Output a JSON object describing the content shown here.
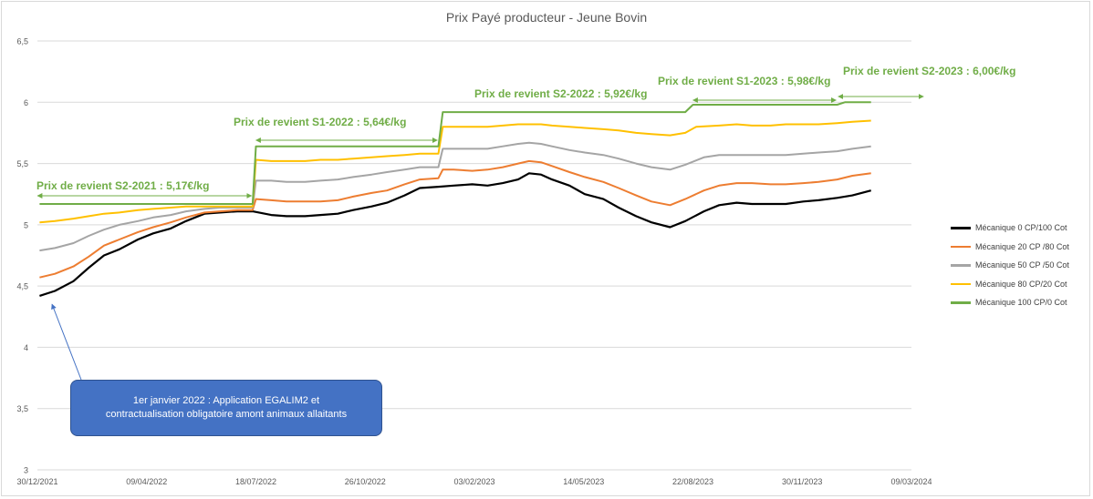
{
  "chart_data": {
    "type": "line",
    "title": "Prix Payé producteur - Jeune Bovin",
    "xlabel": "",
    "ylabel": "",
    "ylim": [
      3,
      6.5
    ],
    "y_ticks": [
      "3",
      "3,5",
      "4",
      "4,5",
      "5",
      "5,5",
      "6",
      "6,5"
    ],
    "x_range": [
      "2021-12-30",
      "2024-03-09"
    ],
    "x_ticks": [
      "30/12/2021",
      "09/04/2022",
      "18/07/2022",
      "26/10/2022",
      "03/02/2023",
      "14/05/2023",
      "22/08/2023",
      "30/11/2023",
      "09/03/2024"
    ],
    "grid": true,
    "legend_position": "right",
    "series": [
      {
        "name": "Mécanique 0 CP/100 Cot",
        "color": "#000000",
        "points": [
          [
            "2022-01-01",
            4.42
          ],
          [
            "2022-01-15",
            4.46
          ],
          [
            "2022-02-01",
            4.54
          ],
          [
            "2022-02-15",
            4.65
          ],
          [
            "2022-03-01",
            4.75
          ],
          [
            "2022-03-15",
            4.8
          ],
          [
            "2022-04-01",
            4.88
          ],
          [
            "2022-04-15",
            4.93
          ],
          [
            "2022-05-01",
            4.97
          ],
          [
            "2022-05-15",
            5.03
          ],
          [
            "2022-06-01",
            5.09
          ],
          [
            "2022-06-15",
            5.1
          ],
          [
            "2022-07-01",
            5.11
          ],
          [
            "2022-07-15",
            5.11
          ],
          [
            "2022-08-01",
            5.08
          ],
          [
            "2022-08-15",
            5.07
          ],
          [
            "2022-09-01",
            5.07
          ],
          [
            "2022-09-15",
            5.08
          ],
          [
            "2022-10-01",
            5.09
          ],
          [
            "2022-10-15",
            5.12
          ],
          [
            "2022-11-01",
            5.15
          ],
          [
            "2022-11-15",
            5.18
          ],
          [
            "2022-12-01",
            5.24
          ],
          [
            "2022-12-15",
            5.3
          ],
          [
            "2023-01-01",
            5.31
          ],
          [
            "2023-01-15",
            5.32
          ],
          [
            "2023-02-01",
            5.33
          ],
          [
            "2023-02-15",
            5.32
          ],
          [
            "2023-03-01",
            5.34
          ],
          [
            "2023-03-15",
            5.37
          ],
          [
            "2023-03-25",
            5.42
          ],
          [
            "2023-04-05",
            5.41
          ],
          [
            "2023-04-15",
            5.37
          ],
          [
            "2023-05-01",
            5.32
          ],
          [
            "2023-05-15",
            5.25
          ],
          [
            "2023-06-01",
            5.21
          ],
          [
            "2023-06-15",
            5.14
          ],
          [
            "2023-07-01",
            5.07
          ],
          [
            "2023-07-15",
            5.02
          ],
          [
            "2023-08-01",
            4.98
          ],
          [
            "2023-08-15",
            5.03
          ],
          [
            "2023-09-01",
            5.11
          ],
          [
            "2023-09-15",
            5.16
          ],
          [
            "2023-10-01",
            5.18
          ],
          [
            "2023-10-15",
            5.17
          ],
          [
            "2023-11-01",
            5.17
          ],
          [
            "2023-11-15",
            5.17
          ],
          [
            "2023-12-01",
            5.19
          ],
          [
            "2023-12-15",
            5.2
          ],
          [
            "2024-01-01",
            5.22
          ],
          [
            "2024-01-15",
            5.24
          ],
          [
            "2024-02-01",
            5.28
          ]
        ]
      },
      {
        "name": "Mécanique 20 CP /80 Cot",
        "color": "#ed7d31",
        "points": [
          [
            "2022-01-01",
            4.57
          ],
          [
            "2022-01-15",
            4.6
          ],
          [
            "2022-02-01",
            4.66
          ],
          [
            "2022-02-15",
            4.74
          ],
          [
            "2022-03-01",
            4.83
          ],
          [
            "2022-03-15",
            4.88
          ],
          [
            "2022-04-01",
            4.94
          ],
          [
            "2022-04-15",
            4.98
          ],
          [
            "2022-05-01",
            5.02
          ],
          [
            "2022-05-15",
            5.06
          ],
          [
            "2022-06-01",
            5.1
          ],
          [
            "2022-06-15",
            5.11
          ],
          [
            "2022-07-01",
            5.12
          ],
          [
            "2022-07-15",
            5.12
          ],
          [
            "2022-07-18",
            5.21
          ],
          [
            "2022-08-01",
            5.2
          ],
          [
            "2022-08-15",
            5.19
          ],
          [
            "2022-09-01",
            5.19
          ],
          [
            "2022-09-15",
            5.19
          ],
          [
            "2022-10-01",
            5.2
          ],
          [
            "2022-10-15",
            5.23
          ],
          [
            "2022-11-01",
            5.26
          ],
          [
            "2022-11-15",
            5.28
          ],
          [
            "2022-12-01",
            5.33
          ],
          [
            "2022-12-15",
            5.37
          ],
          [
            "2023-01-01",
            5.38
          ],
          [
            "2023-01-05",
            5.45
          ],
          [
            "2023-01-15",
            5.45
          ],
          [
            "2023-02-01",
            5.44
          ],
          [
            "2023-02-15",
            5.45
          ],
          [
            "2023-03-01",
            5.47
          ],
          [
            "2023-03-15",
            5.5
          ],
          [
            "2023-03-25",
            5.52
          ],
          [
            "2023-04-05",
            5.51
          ],
          [
            "2023-04-15",
            5.48
          ],
          [
            "2023-05-01",
            5.43
          ],
          [
            "2023-05-15",
            5.39
          ],
          [
            "2023-06-01",
            5.35
          ],
          [
            "2023-06-15",
            5.3
          ],
          [
            "2023-07-01",
            5.24
          ],
          [
            "2023-07-15",
            5.19
          ],
          [
            "2023-08-01",
            5.16
          ],
          [
            "2023-08-15",
            5.21
          ],
          [
            "2023-09-01",
            5.28
          ],
          [
            "2023-09-15",
            5.32
          ],
          [
            "2023-10-01",
            5.34
          ],
          [
            "2023-10-15",
            5.34
          ],
          [
            "2023-11-01",
            5.33
          ],
          [
            "2023-11-15",
            5.33
          ],
          [
            "2023-12-01",
            5.34
          ],
          [
            "2023-12-15",
            5.35
          ],
          [
            "2024-01-01",
            5.37
          ],
          [
            "2024-01-15",
            5.4
          ],
          [
            "2024-02-01",
            5.42
          ]
        ]
      },
      {
        "name": "Mécanique 50 CP /50 Cot",
        "color": "#a5a5a5",
        "points": [
          [
            "2022-01-01",
            4.79
          ],
          [
            "2022-01-15",
            4.81
          ],
          [
            "2022-02-01",
            4.85
          ],
          [
            "2022-02-15",
            4.91
          ],
          [
            "2022-03-01",
            4.96
          ],
          [
            "2022-03-15",
            5.0
          ],
          [
            "2022-04-01",
            5.03
          ],
          [
            "2022-04-15",
            5.06
          ],
          [
            "2022-05-01",
            5.08
          ],
          [
            "2022-05-15",
            5.11
          ],
          [
            "2022-06-01",
            5.13
          ],
          [
            "2022-06-15",
            5.14
          ],
          [
            "2022-07-01",
            5.14
          ],
          [
            "2022-07-15",
            5.14
          ],
          [
            "2022-07-18",
            5.36
          ],
          [
            "2022-08-01",
            5.36
          ],
          [
            "2022-08-15",
            5.35
          ],
          [
            "2022-09-01",
            5.35
          ],
          [
            "2022-09-15",
            5.36
          ],
          [
            "2022-10-01",
            5.37
          ],
          [
            "2022-10-15",
            5.39
          ],
          [
            "2022-11-01",
            5.41
          ],
          [
            "2022-11-15",
            5.43
          ],
          [
            "2022-12-01",
            5.45
          ],
          [
            "2022-12-15",
            5.47
          ],
          [
            "2023-01-01",
            5.47
          ],
          [
            "2023-01-05",
            5.62
          ],
          [
            "2023-01-15",
            5.62
          ],
          [
            "2023-02-01",
            5.62
          ],
          [
            "2023-02-15",
            5.62
          ],
          [
            "2023-03-01",
            5.64
          ],
          [
            "2023-03-15",
            5.66
          ],
          [
            "2023-03-25",
            5.67
          ],
          [
            "2023-04-05",
            5.66
          ],
          [
            "2023-04-15",
            5.64
          ],
          [
            "2023-05-01",
            5.61
          ],
          [
            "2023-05-15",
            5.59
          ],
          [
            "2023-06-01",
            5.57
          ],
          [
            "2023-06-15",
            5.54
          ],
          [
            "2023-07-01",
            5.5
          ],
          [
            "2023-07-15",
            5.47
          ],
          [
            "2023-08-01",
            5.45
          ],
          [
            "2023-08-15",
            5.49
          ],
          [
            "2023-09-01",
            5.55
          ],
          [
            "2023-09-15",
            5.57
          ],
          [
            "2023-10-01",
            5.57
          ],
          [
            "2023-10-15",
            5.57
          ],
          [
            "2023-11-01",
            5.57
          ],
          [
            "2023-11-15",
            5.57
          ],
          [
            "2023-12-01",
            5.58
          ],
          [
            "2023-12-15",
            5.59
          ],
          [
            "2024-01-01",
            5.6
          ],
          [
            "2024-01-15",
            5.62
          ],
          [
            "2024-02-01",
            5.64
          ]
        ]
      },
      {
        "name": "Mécanique 80 CP/20 Cot",
        "color": "#ffc000",
        "points": [
          [
            "2022-01-01",
            5.02
          ],
          [
            "2022-01-15",
            5.03
          ],
          [
            "2022-02-01",
            5.05
          ],
          [
            "2022-02-15",
            5.07
          ],
          [
            "2022-03-01",
            5.09
          ],
          [
            "2022-03-15",
            5.1
          ],
          [
            "2022-04-01",
            5.12
          ],
          [
            "2022-04-15",
            5.13
          ],
          [
            "2022-05-01",
            5.14
          ],
          [
            "2022-05-15",
            5.15
          ],
          [
            "2022-06-01",
            5.15
          ],
          [
            "2022-06-15",
            5.15
          ],
          [
            "2022-07-01",
            5.15
          ],
          [
            "2022-07-15",
            5.15
          ],
          [
            "2022-07-18",
            5.53
          ],
          [
            "2022-08-01",
            5.52
          ],
          [
            "2022-08-15",
            5.52
          ],
          [
            "2022-09-01",
            5.52
          ],
          [
            "2022-09-15",
            5.53
          ],
          [
            "2022-10-01",
            5.53
          ],
          [
            "2022-10-15",
            5.54
          ],
          [
            "2022-11-01",
            5.55
          ],
          [
            "2022-11-15",
            5.56
          ],
          [
            "2022-12-01",
            5.57
          ],
          [
            "2022-12-15",
            5.58
          ],
          [
            "2023-01-01",
            5.58
          ],
          [
            "2023-01-05",
            5.8
          ],
          [
            "2023-01-15",
            5.8
          ],
          [
            "2023-02-01",
            5.8
          ],
          [
            "2023-02-15",
            5.8
          ],
          [
            "2023-03-01",
            5.81
          ],
          [
            "2023-03-15",
            5.82
          ],
          [
            "2023-03-25",
            5.82
          ],
          [
            "2023-04-05",
            5.82
          ],
          [
            "2023-04-15",
            5.81
          ],
          [
            "2023-05-01",
            5.8
          ],
          [
            "2023-05-15",
            5.79
          ],
          [
            "2023-06-01",
            5.78
          ],
          [
            "2023-06-15",
            5.77
          ],
          [
            "2023-07-01",
            5.75
          ],
          [
            "2023-07-15",
            5.74
          ],
          [
            "2023-08-01",
            5.73
          ],
          [
            "2023-08-15",
            5.75
          ],
          [
            "2023-08-25",
            5.8
          ],
          [
            "2023-09-15",
            5.81
          ],
          [
            "2023-10-01",
            5.82
          ],
          [
            "2023-10-15",
            5.81
          ],
          [
            "2023-11-01",
            5.81
          ],
          [
            "2023-11-15",
            5.82
          ],
          [
            "2023-12-01",
            5.82
          ],
          [
            "2023-12-15",
            5.82
          ],
          [
            "2024-01-01",
            5.83
          ],
          [
            "2024-01-15",
            5.84
          ],
          [
            "2024-02-01",
            5.85
          ]
        ]
      },
      {
        "name": "Mécanique 100 CP/0 Cot",
        "color": "#70ad47",
        "points": [
          [
            "2022-01-01",
            5.17
          ],
          [
            "2022-07-15",
            5.17
          ],
          [
            "2022-07-18",
            5.64
          ],
          [
            "2023-01-01",
            5.64
          ],
          [
            "2023-01-05",
            5.92
          ],
          [
            "2023-08-15",
            5.92
          ],
          [
            "2023-08-22",
            5.98
          ],
          [
            "2024-01-01",
            5.98
          ],
          [
            "2024-01-08",
            6.0
          ],
          [
            "2024-02-01",
            6.0
          ]
        ]
      }
    ],
    "annotations": [
      {
        "text": "Prix de revient S2-2021 :  5,17€/kg",
        "value": 5.17,
        "from": "2021-12-30",
        "to": "2022-07-14"
      },
      {
        "text": "Prix de revient S1-2022 :  5,64€/kg",
        "value": 5.64,
        "from": "2022-07-18",
        "to": "2022-12-31"
      },
      {
        "text": "Prix de revient S2-2022 :  5,92€/kg",
        "value": 5.92,
        "from": null,
        "to": null
      },
      {
        "text": "Prix de revient S1-2023 :  5,98€/kg",
        "value": 5.98,
        "from": "2023-08-22",
        "to": "2023-12-31"
      },
      {
        "text": "Prix de revient S2-2023 :  6,00€/kg",
        "value": 6.0,
        "from": "2024-01-02",
        "to": "2024-03-20"
      }
    ]
  },
  "callout": {
    "line1": "1er janvier 2022 : Application EGALIM2 et",
    "line2": "contractualisation obligatoire amont animaux allaitants"
  }
}
